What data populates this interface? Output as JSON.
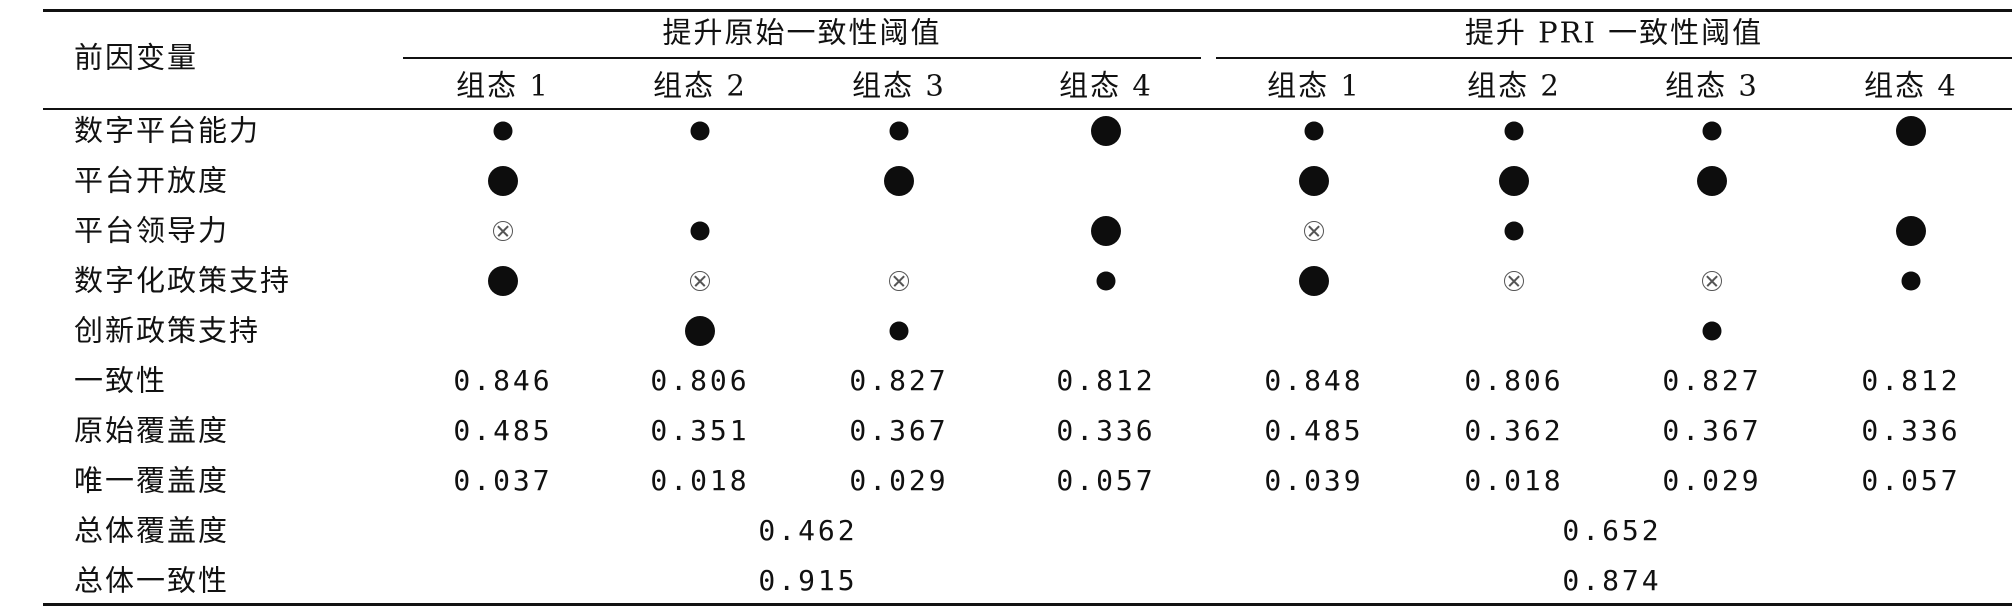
{
  "table": {
    "corner_label": "前因变量",
    "groups": [
      "提升原始一致性阈值",
      "提升 PRI 一致性阈值"
    ],
    "columns": [
      "组态 1",
      "组态 2",
      "组态 3",
      "组态 4",
      "组态 1",
      "组态 2",
      "组态 3",
      "组态 4"
    ],
    "legend_symbols": {
      "core_present": "large black dot",
      "peripheral_present": "small black dot",
      "peripheral_absent": "circled cross"
    },
    "condition_rows": [
      {
        "label": "数字平台能力",
        "cells": [
          "peripheral_present",
          "peripheral_present",
          "peripheral_present",
          "core_present",
          "peripheral_present",
          "peripheral_present",
          "peripheral_present",
          "core_present"
        ]
      },
      {
        "label": "平台开放度",
        "cells": [
          "core_present",
          "",
          "core_present",
          "",
          "core_present",
          "core_present",
          "core_present",
          ""
        ]
      },
      {
        "label": "平台领导力",
        "cells": [
          "peripheral_absent",
          "peripheral_present",
          "",
          "core_present",
          "peripheral_absent",
          "peripheral_present",
          "",
          "core_present"
        ]
      },
      {
        "label": "数字化政策支持",
        "cells": [
          "core_present",
          "peripheral_absent",
          "peripheral_absent",
          "peripheral_present",
          "core_present",
          "peripheral_absent",
          "peripheral_absent",
          "peripheral_present"
        ]
      },
      {
        "label": "创新政策支持",
        "cells": [
          "",
          "core_present",
          "peripheral_present",
          "",
          "",
          "",
          "peripheral_present",
          ""
        ]
      }
    ],
    "metric_rows": [
      {
        "label": "一致性",
        "values": [
          "0.846",
          "0.806",
          "0.827",
          "0.812",
          "0.848",
          "0.806",
          "0.827",
          "0.812"
        ]
      },
      {
        "label": "原始覆盖度",
        "values": [
          "0.485",
          "0.351",
          "0.367",
          "0.336",
          "0.485",
          "0.362",
          "0.367",
          "0.336"
        ]
      },
      {
        "label": "唯一覆盖度",
        "values": [
          "0.037",
          "0.018",
          "0.029",
          "0.057",
          "0.039",
          "0.018",
          "0.029",
          "0.057"
        ]
      }
    ],
    "overall_rows": [
      {
        "label": "总体覆盖度",
        "values": [
          "0.462",
          "0.652"
        ]
      },
      {
        "label": "总体一致性",
        "values": [
          "0.915",
          "0.874"
        ]
      }
    ]
  }
}
